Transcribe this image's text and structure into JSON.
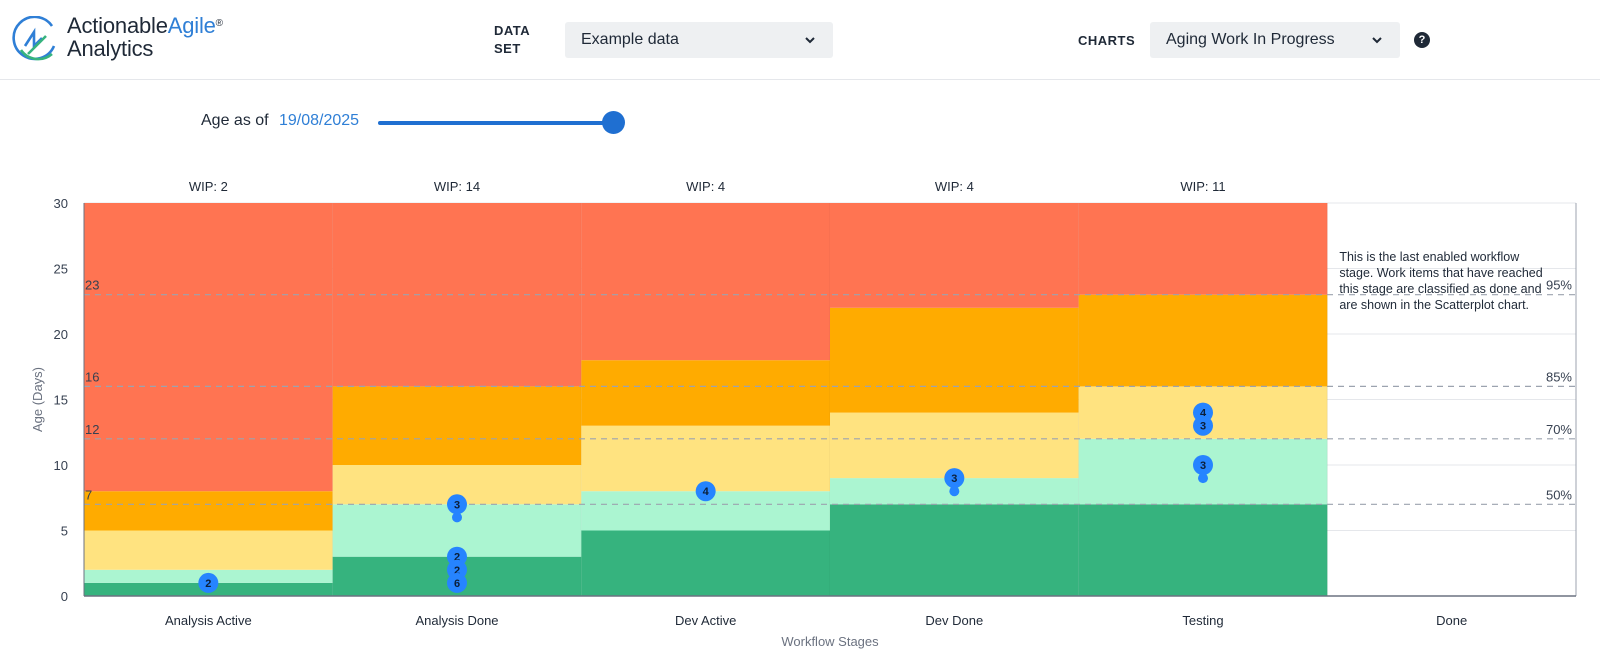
{
  "header": {
    "logo": {
      "text_main": "Actionable",
      "text_accent": "Agile",
      "text_line2": "Analytics",
      "registered": "®"
    },
    "dataset_label": "DATA\nSET",
    "dataset_value": "Example data",
    "charts_label": "CHARTS",
    "charts_value": "Aging Work In Progress",
    "help_glyph": "?"
  },
  "controls": {
    "age_label": "Age as of",
    "age_date": "19/08/2025",
    "slider_value_fraction": 1.0
  },
  "colors": {
    "red": "#ff7452",
    "orange": "#ffab00",
    "yellow": "#ffe380",
    "lightgreen": "#abf5d1",
    "green": "#36b37e",
    "dot": "#2684ff",
    "accent": "#2f7fd6"
  },
  "chart_data": {
    "type": "aging-wip",
    "xlabel": "Workflow Stages",
    "ylabel": "Age (Days)",
    "ylim": [
      0,
      30
    ],
    "yticks": [
      0,
      5,
      10,
      15,
      20,
      25,
      30
    ],
    "stages": [
      {
        "name": "Analysis Active",
        "wip": "WIP: 2",
        "bands": [
          1,
          2,
          5,
          8
        ]
      },
      {
        "name": "Analysis Done",
        "wip": "WIP: 14",
        "bands": [
          3,
          7,
          10,
          16
        ]
      },
      {
        "name": "Dev Active",
        "wip": "WIP: 4",
        "bands": [
          5,
          8,
          13,
          18
        ]
      },
      {
        "name": "Dev Done",
        "wip": "WIP: 4",
        "bands": [
          7,
          9,
          14,
          22
        ]
      },
      {
        "name": "Testing",
        "wip": "WIP: 11",
        "bands": [
          7,
          12,
          16,
          23
        ]
      },
      {
        "name": "Done",
        "wip": "",
        "bands": null
      }
    ],
    "percentiles": [
      {
        "label": "95%",
        "value": 23,
        "left_label": "23"
      },
      {
        "label": "85%",
        "value": 16,
        "left_label": "16"
      },
      {
        "label": "70%",
        "value": 12,
        "left_label": "12"
      },
      {
        "label": "50%",
        "value": 7,
        "left_label": "7"
      }
    ],
    "points": [
      {
        "stage": 0,
        "age": 1,
        "count": "2"
      },
      {
        "stage": 1,
        "age": 7,
        "count": "3"
      },
      {
        "stage": 1,
        "age": 6,
        "count": ""
      },
      {
        "stage": 1,
        "age": 3,
        "count": "2"
      },
      {
        "stage": 1,
        "age": 2,
        "count": "2"
      },
      {
        "stage": 1,
        "age": 1,
        "count": "6"
      },
      {
        "stage": 2,
        "age": 8,
        "count": "4"
      },
      {
        "stage": 3,
        "age": 9,
        "count": "3"
      },
      {
        "stage": 3,
        "age": 8,
        "count": ""
      },
      {
        "stage": 4,
        "age": 14,
        "count": "4"
      },
      {
        "stage": 4,
        "age": 13,
        "count": "3"
      },
      {
        "stage": 4,
        "age": 10,
        "count": "3"
      },
      {
        "stage": 4,
        "age": 9,
        "count": ""
      }
    ],
    "done_note": "This is the last enabled workflow stage. Work items that have reached this stage are classified as done and are shown in the Scatterplot chart."
  }
}
